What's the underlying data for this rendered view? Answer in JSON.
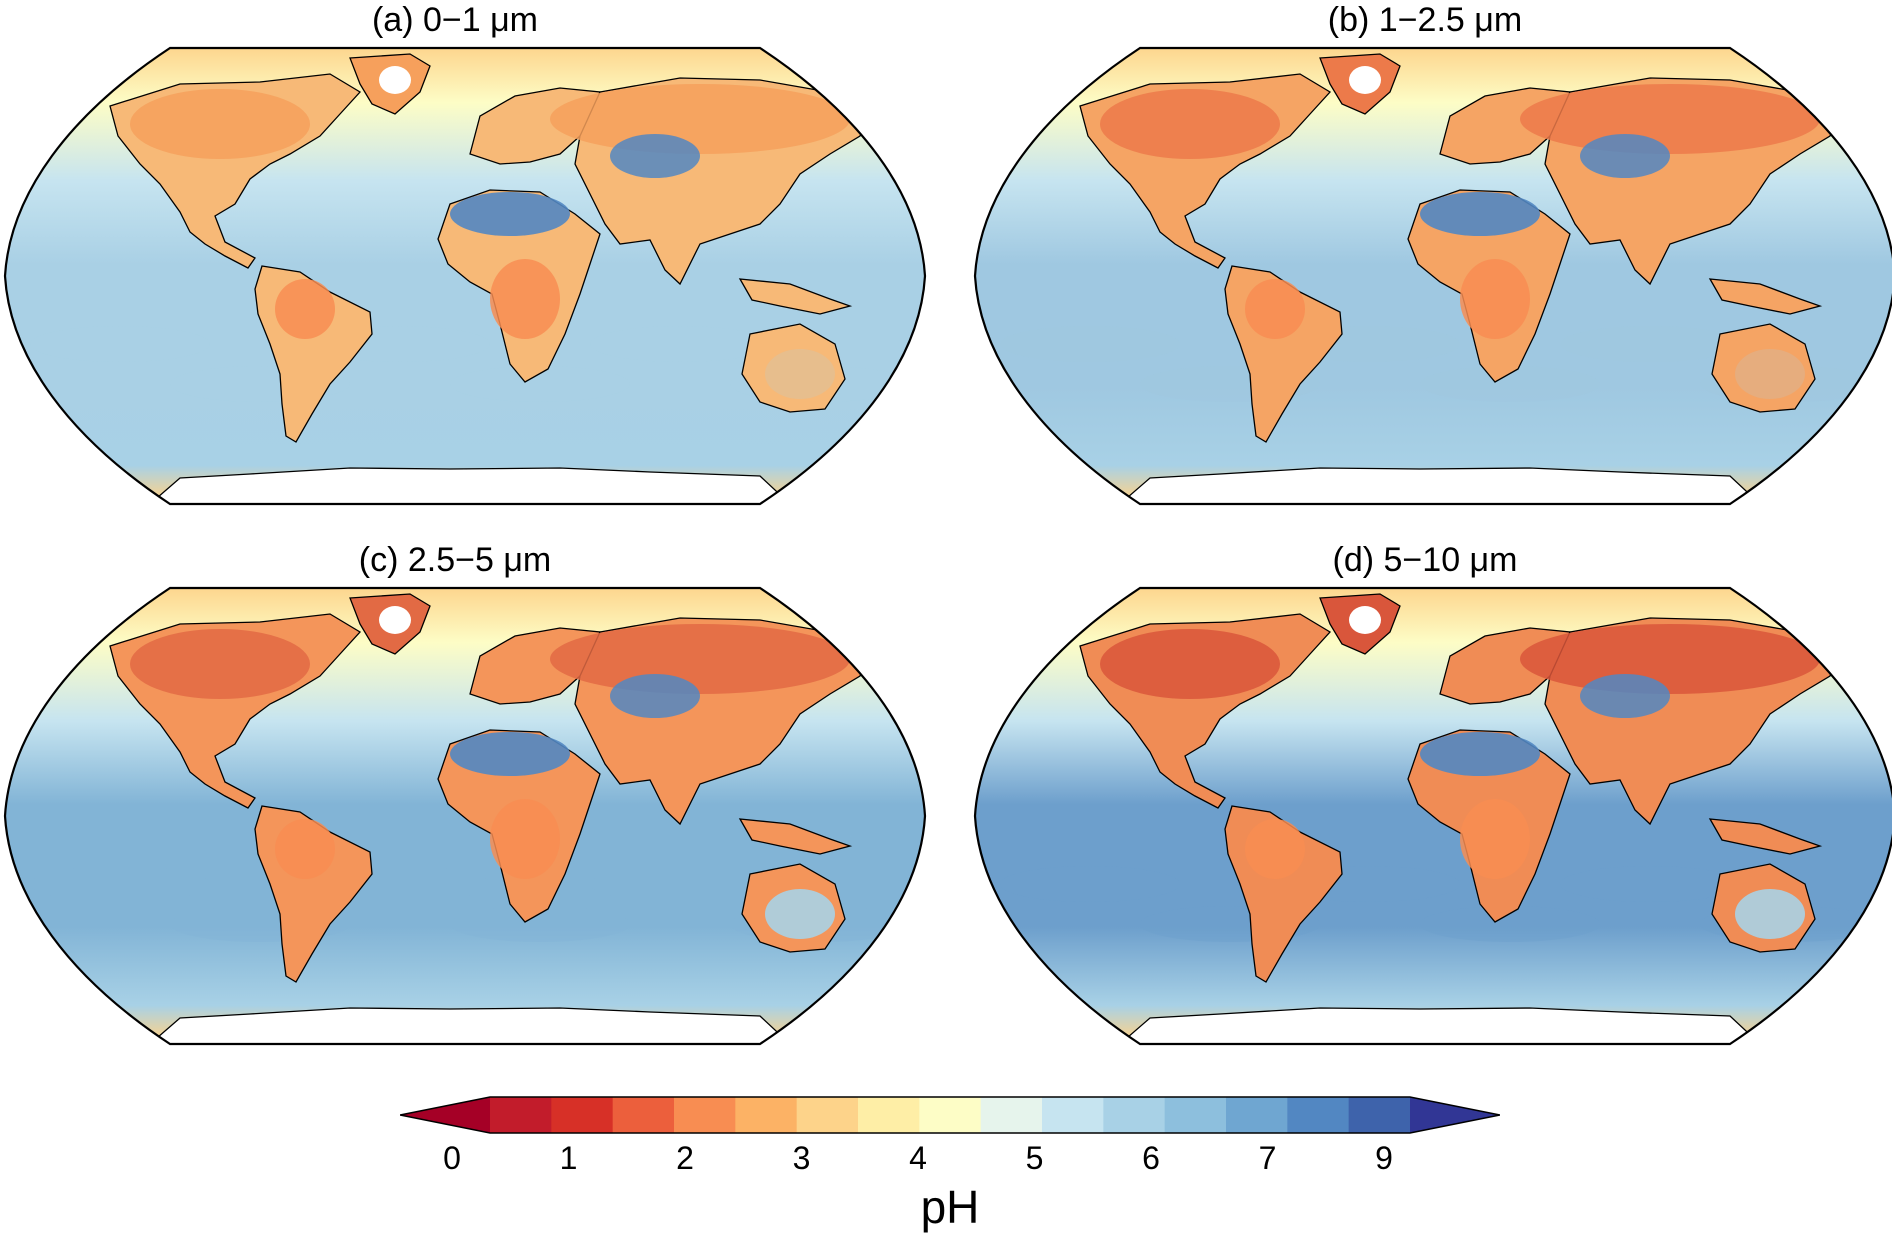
{
  "panels": [
    {
      "title": "(a) 0−1 μm",
      "ocean_tone": "#a9d0e5",
      "land_tone": "#f7b977",
      "north_tone": "#f6a05c"
    },
    {
      "title": "(b) 1−2.5 μm",
      "ocean_tone": "#9fc8e1",
      "land_tone": "#f5a464",
      "north_tone": "#ec7a4a"
    },
    {
      "title": "(c) 2.5−5 μm",
      "ocean_tone": "#82b4d6",
      "land_tone": "#f4955a",
      "north_tone": "#e26a44"
    },
    {
      "title": "(d) 5−10 μm",
      "ocean_tone": "#6d9fcc",
      "land_tone": "#f08c55",
      "north_tone": "#d9563b"
    }
  ],
  "colorbar": {
    "title": "pH",
    "tick_labels": [
      "0",
      "1",
      "2",
      "3",
      "4",
      "5",
      "6",
      "7",
      "9"
    ],
    "colors": [
      "#a50026",
      "#c21c2b",
      "#d73027",
      "#ec5f3c",
      "#f88d52",
      "#fcb265",
      "#fdd38a",
      "#feeea6",
      "#fdfdc6",
      "#e6f4ec",
      "#c6e4f0",
      "#a8d1e6",
      "#8dbfdd",
      "#6fa6d1",
      "#5287c2",
      "#3e63ab",
      "#313695"
    ]
  }
}
